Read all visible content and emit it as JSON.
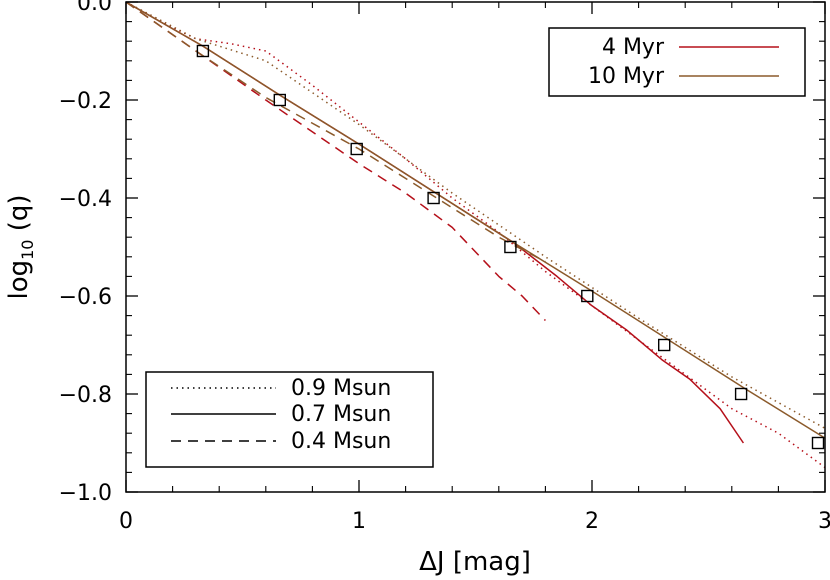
{
  "chart_data": {
    "type": "line",
    "title": "",
    "xlabel": "ΔJ [mag]",
    "ylabel_main": "log",
    "ylabel_sub": "10",
    "ylabel_rest": " (q)",
    "xlim": [
      0,
      3
    ],
    "ylim": [
      -1.0,
      0.0
    ],
    "x_ticks": [
      0,
      1,
      2,
      3
    ],
    "x_tick_labels": [
      "0",
      "1",
      "2",
      "3"
    ],
    "y_ticks": [
      0.0,
      -0.2,
      -0.4,
      -0.6,
      -0.8,
      -1.0
    ],
    "y_tick_labels": [
      "0.0",
      "−0.2",
      "−0.4",
      "−0.6",
      "−0.8",
      "−1.0"
    ],
    "grid": false,
    "colors": {
      "age_4myr": "#b5101a",
      "age_10myr": "#8b5a2b",
      "markers": "#000000"
    },
    "legend_age": {
      "placement": "top-right",
      "entries": [
        {
          "label": "4 Myr",
          "color": "#b5101a"
        },
        {
          "label": "10 Myr",
          "color": "#8b5a2b"
        }
      ]
    },
    "legend_mass": {
      "placement": "bottom-left",
      "entries": [
        {
          "label": "0.9 Msun",
          "dash": "dotted"
        },
        {
          "label": "0.7 Msun",
          "dash": "solid"
        },
        {
          "label": "0.4 Msun",
          "dash": "dashed"
        }
      ]
    },
    "series": [
      {
        "age": "4 Myr",
        "mass": "0.9 Msun",
        "dash": "dotted",
        "color": "#b5101a",
        "x": [
          0.0,
          0.15,
          0.3,
          0.45,
          0.6,
          0.8,
          1.0,
          1.2,
          1.4,
          1.6,
          1.8,
          2.0,
          2.2,
          2.4,
          2.6,
          2.8,
          3.0
        ],
        "y": [
          0.0,
          -0.04,
          -0.075,
          -0.085,
          -0.1,
          -0.17,
          -0.245,
          -0.32,
          -0.4,
          -0.47,
          -0.55,
          -0.62,
          -0.69,
          -0.76,
          -0.83,
          -0.88,
          -0.95
        ]
      },
      {
        "age": "10 Myr",
        "mass": "0.9 Msun",
        "dash": "dotted",
        "color": "#8b5a2b",
        "x": [
          0.0,
          0.3,
          0.6,
          1.0,
          1.4,
          1.8,
          2.2,
          2.6,
          3.0
        ],
        "y": [
          0.0,
          -0.075,
          -0.12,
          -0.25,
          -0.39,
          -0.52,
          -0.645,
          -0.765,
          -0.87
        ]
      },
      {
        "age": "4 Myr",
        "mass": "0.7 Msun",
        "dash": "solid",
        "color": "#b5101a",
        "x": [
          0.0,
          0.33,
          0.66,
          1.0,
          1.33,
          1.66,
          1.85,
          2.0,
          2.15,
          2.3,
          2.42,
          2.55,
          2.65
        ],
        "y": [
          0.0,
          -0.09,
          -0.19,
          -0.29,
          -0.39,
          -0.49,
          -0.56,
          -0.62,
          -0.67,
          -0.73,
          -0.77,
          -0.83,
          -0.9
        ]
      },
      {
        "age": "10 Myr",
        "mass": "0.7 Msun",
        "dash": "solid",
        "color": "#8b5a2b",
        "x": [
          0.0,
          0.33,
          0.66,
          1.0,
          1.33,
          1.66,
          2.0,
          2.33,
          2.66,
          3.0
        ],
        "y": [
          0.0,
          -0.09,
          -0.19,
          -0.29,
          -0.39,
          -0.49,
          -0.59,
          -0.69,
          -0.79,
          -0.89
        ]
      },
      {
        "age": "4 Myr",
        "mass": "0.4 Msun",
        "dash": "dashed",
        "color": "#b5101a",
        "x": [
          0.0,
          0.3,
          0.6,
          1.0,
          1.2,
          1.4,
          1.6,
          1.7,
          1.8
        ],
        "y": [
          0.0,
          -0.1,
          -0.2,
          -0.33,
          -0.39,
          -0.46,
          -0.56,
          -0.6,
          -0.65
        ]
      },
      {
        "age": "10 Myr",
        "mass": "0.4 Msun",
        "dash": "dashed",
        "color": "#8b5a2b",
        "x": [
          0.0,
          0.3,
          0.6,
          1.0,
          1.3,
          1.6,
          1.8
        ],
        "y": [
          0.0,
          -0.1,
          -0.195,
          -0.3,
          -0.39,
          -0.48,
          -0.53
        ]
      }
    ],
    "markers": {
      "shape": "square",
      "x": [
        0.33,
        0.66,
        0.99,
        1.32,
        1.65,
        1.98,
        2.31,
        2.64,
        2.97
      ],
      "y": [
        -0.1,
        -0.2,
        -0.3,
        -0.4,
        -0.5,
        -0.6,
        -0.7,
        -0.8,
        -0.9
      ]
    }
  }
}
